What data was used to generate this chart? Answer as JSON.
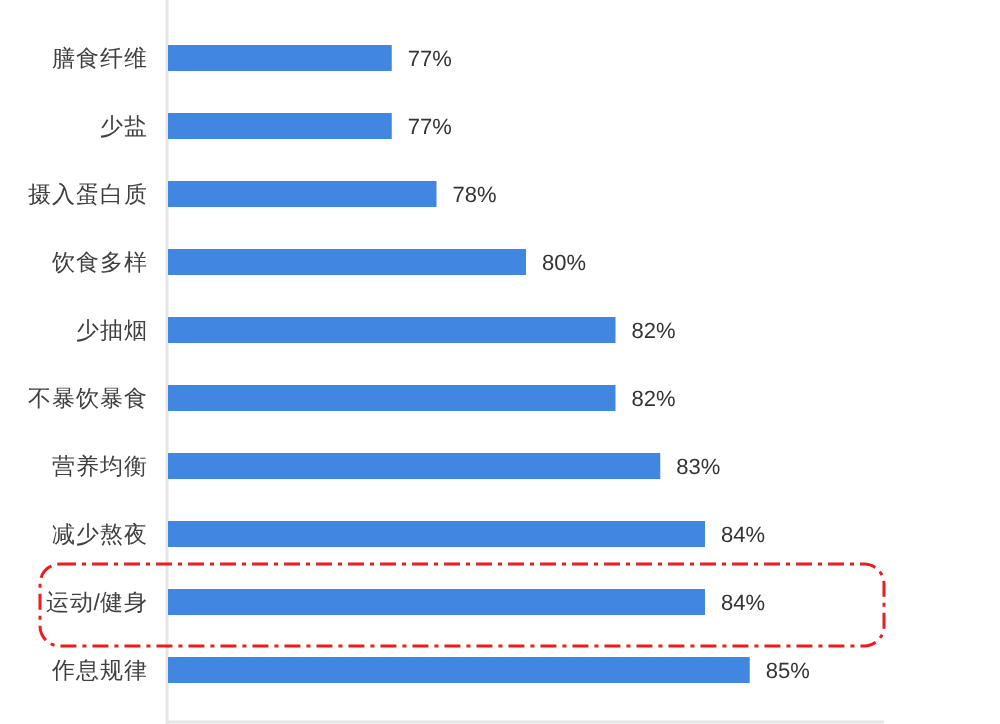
{
  "chart_data": {
    "type": "bar",
    "orientation": "horizontal",
    "categories": [
      "膳食纤维",
      "少盐",
      "摄入蛋白质",
      "饮食多样",
      "少抽烟",
      "不暴饮暴食",
      "营养均衡",
      "减少熬夜",
      "运动/健身",
      "作息规律"
    ],
    "values": [
      77,
      77,
      78,
      80,
      82,
      82,
      83,
      84,
      84,
      85
    ],
    "value_labels": [
      "77%",
      "77%",
      "78%",
      "80%",
      "82%",
      "82%",
      "83%",
      "84%",
      "84%",
      "85%"
    ],
    "color": "#4186e0",
    "xlim": [
      72,
      88
    ],
    "tick_labels": "y"
  }
}
